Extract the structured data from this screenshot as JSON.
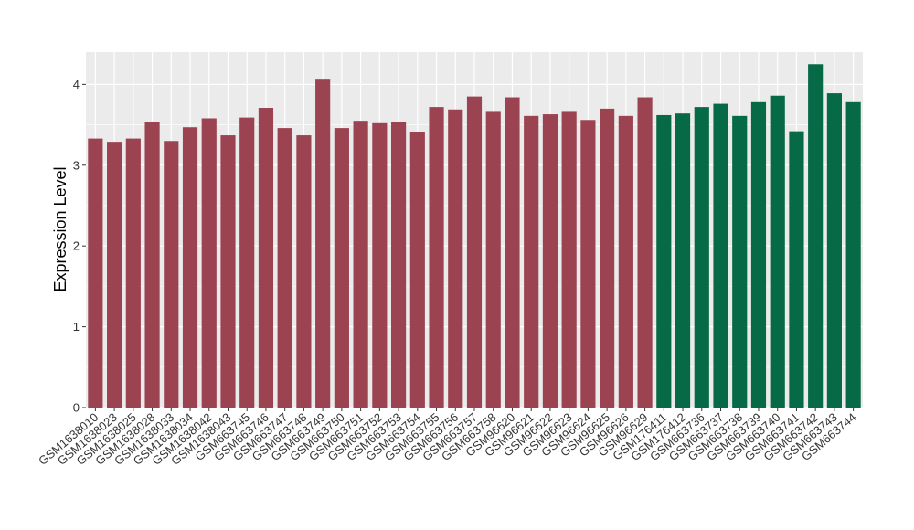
{
  "chart_data": {
    "type": "bar",
    "title": "",
    "xlabel": "",
    "ylabel": "Expression Level",
    "ylim": [
      0,
      4.4
    ],
    "yticks": [
      0,
      1,
      2,
      3,
      4
    ],
    "grid": true,
    "background_color": "#EBEBEB",
    "categories": [
      "GSM1638010",
      "GSM1638023",
      "GSM1638025",
      "GSM1638028",
      "GSM1638033",
      "GSM1638034",
      "GSM1638042",
      "GSM1638043",
      "GSM663745",
      "GSM663746",
      "GSM663747",
      "GSM663748",
      "GSM663749",
      "GSM663750",
      "GSM663751",
      "GSM663752",
      "GSM663753",
      "GSM663754",
      "GSM663755",
      "GSM663756",
      "GSM663757",
      "GSM663758",
      "GSM96620",
      "GSM96621",
      "GSM96622",
      "GSM96623",
      "GSM96624",
      "GSM96625",
      "GSM96626",
      "GSM96629",
      "GSM176411",
      "GSM176412",
      "GSM663736",
      "GSM663737",
      "GSM663738",
      "GSM663739",
      "GSM663740",
      "GSM663741",
      "GSM663742",
      "GSM663743",
      "GSM663744"
    ],
    "values": [
      3.33,
      3.29,
      3.33,
      3.53,
      3.3,
      3.47,
      3.58,
      3.37,
      3.59,
      3.71,
      3.46,
      3.37,
      4.07,
      3.46,
      3.55,
      3.52,
      3.54,
      3.41,
      3.72,
      3.69,
      3.85,
      3.66,
      3.84,
      3.61,
      3.63,
      3.66,
      3.56,
      3.7,
      3.61,
      3.84,
      3.62,
      3.64,
      3.72,
      3.76,
      3.61,
      3.78,
      3.86,
      3.42,
      4.25,
      3.89,
      3.78
    ],
    "colors": [
      "#9B4350",
      "#9B4350",
      "#9B4350",
      "#9B4350",
      "#9B4350",
      "#9B4350",
      "#9B4350",
      "#9B4350",
      "#9B4350",
      "#9B4350",
      "#9B4350",
      "#9B4350",
      "#9B4350",
      "#9B4350",
      "#9B4350",
      "#9B4350",
      "#9B4350",
      "#9B4350",
      "#9B4350",
      "#9B4350",
      "#9B4350",
      "#9B4350",
      "#9B4350",
      "#9B4350",
      "#9B4350",
      "#9B4350",
      "#9B4350",
      "#9B4350",
      "#9B4350",
      "#9B4350",
      "#066A47",
      "#066A47",
      "#066A47",
      "#066A47",
      "#066A47",
      "#066A47",
      "#066A47",
      "#066A47",
      "#066A47",
      "#066A47",
      "#066A47"
    ]
  }
}
